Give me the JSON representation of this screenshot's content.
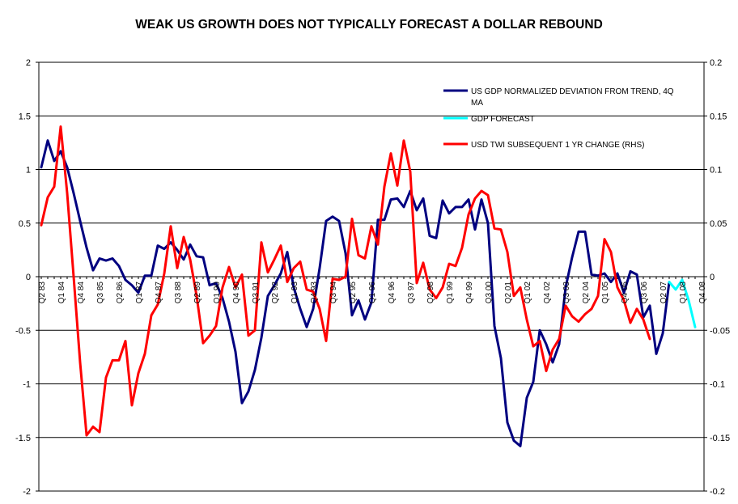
{
  "chart_data": {
    "type": "line",
    "title": "WEAK US GROWTH DOES NOT TYPICALLY FORECAST A DOLLAR REBOUND",
    "xlabel": "",
    "ylabel": "",
    "ylim": [
      -2,
      2
    ],
    "y2lim": [
      -0.2,
      0.2
    ],
    "y_ticks": [
      "2",
      "1.5",
      "1",
      "0.5",
      "0",
      "-0.5",
      "-1",
      "-1.5",
      "-2"
    ],
    "y2_ticks": [
      "0.2",
      "0.15",
      "0.1",
      "0.05",
      "0",
      "-0.05",
      "-0.1",
      "-0.15",
      "-0.2"
    ],
    "x_tick_labels": [
      "Q2 83",
      "Q1 84",
      "Q4 84",
      "Q3 85",
      "Q2 86",
      "Q1 87",
      "Q4 87",
      "Q3 88",
      "Q2 89",
      "Q1 90",
      "Q4 90",
      "Q3 91",
      "Q2 92",
      "Q1 93",
      "Q4 93",
      "Q3 94",
      "Q2 95",
      "Q1 96",
      "Q4 96",
      "Q3 97",
      "Q2 98",
      "Q1 99",
      "Q4 99",
      "Q3 00",
      "Q2 01",
      "Q1 02",
      "Q4 02",
      "Q3 03",
      "Q2 04",
      "Q1 05",
      "Q4 05",
      "Q3 06",
      "Q2 07",
      "Q1 08",
      "Q4 08"
    ],
    "grid": true,
    "legend_position": "top-right",
    "series": [
      {
        "name": "US GDP NORMALIZED DEVIATION FROM TREND, 4Q MA",
        "color": "#000080",
        "axis": "left",
        "start_index": 0,
        "values": [
          1.02,
          1.27,
          1.08,
          1.17,
          1.02,
          0.78,
          0.52,
          0.27,
          0.06,
          0.17,
          0.15,
          0.17,
          0.1,
          -0.03,
          -0.08,
          -0.15,
          0.01,
          0.01,
          0.29,
          0.26,
          0.32,
          0.25,
          0.16,
          0.3,
          0.19,
          0.18,
          -0.08,
          -0.06,
          -0.2,
          -0.42,
          -0.7,
          -1.18,
          -1.07,
          -0.87,
          -0.57,
          -0.18,
          -0.08,
          0.03,
          0.23,
          -0.1,
          -0.3,
          -0.47,
          -0.3,
          0.08,
          0.52,
          0.56,
          0.52,
          0.22,
          -0.36,
          -0.22,
          -0.4,
          -0.24,
          0.53,
          0.53,
          0.72,
          0.73,
          0.65,
          0.8,
          0.62,
          0.73,
          0.38,
          0.36,
          0.71,
          0.59,
          0.65,
          0.65,
          0.72,
          0.44,
          0.72,
          0.5,
          -0.46,
          -0.76,
          -1.36,
          -1.53,
          -1.58,
          -1.13,
          -0.98,
          -0.5,
          -0.63,
          -0.8,
          -0.63,
          -0.1,
          0.18,
          0.42,
          0.42,
          0.02,
          0.01,
          0.03,
          -0.05,
          0.03,
          -0.15,
          0.05,
          0.02,
          -0.38,
          -0.27,
          -0.72,
          -0.53,
          -0.05
        ]
      },
      {
        "name": "GDP FORECAST",
        "color": "#00ffff",
        "axis": "left",
        "start_index": 97,
        "values": [
          -0.05,
          -0.12,
          -0.03,
          -0.22,
          -0.47
        ]
      },
      {
        "name": "USD TWI SUBSEQUENT 1 YR CHANGE (RHS)",
        "color": "#ff0000",
        "axis": "right",
        "start_index": 0,
        "values": [
          0.048,
          0.074,
          0.084,
          0.14,
          0.078,
          0.0,
          -0.08,
          -0.148,
          -0.14,
          -0.145,
          -0.094,
          -0.078,
          -0.078,
          -0.06,
          -0.12,
          -0.09,
          -0.072,
          -0.036,
          -0.026,
          0.003,
          0.047,
          0.008,
          0.037,
          0.016,
          -0.018,
          -0.062,
          -0.055,
          -0.046,
          -0.01,
          0.009,
          -0.01,
          0.002,
          -0.055,
          -0.05,
          0.032,
          0.004,
          0.016,
          0.029,
          -0.005,
          0.008,
          0.014,
          -0.012,
          -0.014,
          -0.03,
          -0.06,
          -0.002,
          -0.003,
          0.0,
          0.054,
          0.02,
          0.017,
          0.047,
          0.03,
          0.084,
          0.115,
          0.085,
          0.127,
          0.098,
          -0.006,
          0.013,
          -0.012,
          -0.02,
          -0.01,
          0.012,
          0.01,
          0.027,
          0.058,
          0.073,
          0.08,
          0.076,
          0.045,
          0.044,
          0.023,
          -0.018,
          -0.01,
          -0.04,
          -0.065,
          -0.06,
          -0.088,
          -0.068,
          -0.058,
          -0.027,
          -0.037,
          -0.042,
          -0.035,
          -0.03,
          -0.018,
          0.035,
          0.023,
          -0.01,
          -0.022,
          -0.043,
          -0.03,
          -0.04,
          -0.058
        ]
      }
    ]
  }
}
